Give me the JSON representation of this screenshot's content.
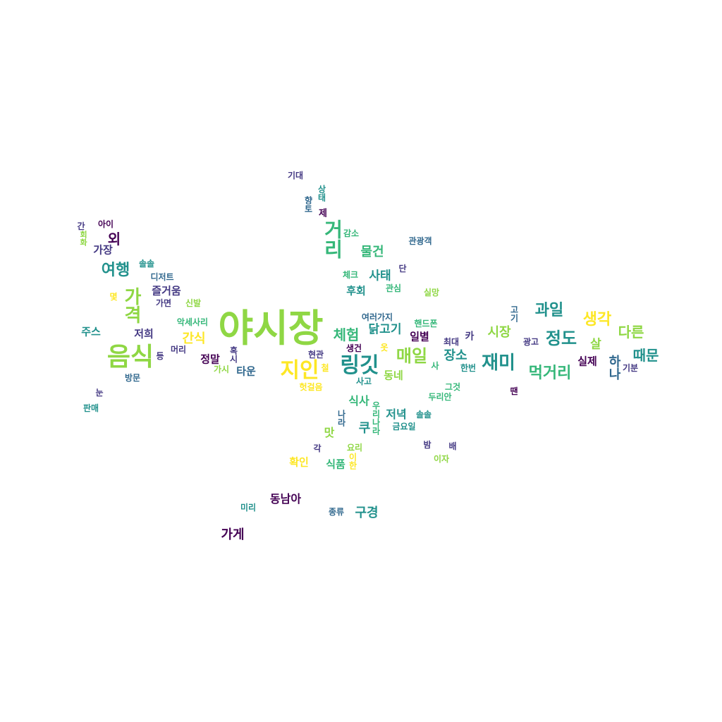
{
  "palette": {
    "yellow": "#fde725",
    "lime": "#8fd744",
    "green": "#35b779",
    "teal": "#21918c",
    "blue": "#31688e",
    "indigo": "#443983",
    "purple": "#440154"
  },
  "words": [
    {
      "text": "야시장",
      "color": "#8fd744"
    },
    {
      "text": "음식",
      "color": "#8fd744"
    },
    {
      "text": "지인",
      "color": "#fde725"
    },
    {
      "text": "링깃",
      "color": "#21918c"
    },
    {
      "text": "거리",
      "color": "#35b779"
    },
    {
      "text": "가격",
      "color": "#8fd744"
    },
    {
      "text": "재미",
      "color": "#21918c"
    },
    {
      "text": "여행",
      "color": "#21918c"
    },
    {
      "text": "매일",
      "color": "#8fd744"
    },
    {
      "text": "정도",
      "color": "#21918c"
    },
    {
      "text": "과일",
      "color": "#21918c"
    },
    {
      "text": "생각",
      "color": "#fde725"
    },
    {
      "text": "먹거리",
      "color": "#35b779"
    },
    {
      "text": "체험",
      "color": "#35b779"
    },
    {
      "text": "외",
      "color": "#440154"
    },
    {
      "text": "다른",
      "color": "#8fd744"
    },
    {
      "text": "때문",
      "color": "#21918c"
    },
    {
      "text": "시장",
      "color": "#8fd744"
    },
    {
      "text": "장소",
      "color": "#21918c"
    },
    {
      "text": "간식",
      "color": "#fde725"
    },
    {
      "text": "닭고기",
      "color": "#21918c"
    },
    {
      "text": "물건",
      "color": "#35b779"
    },
    {
      "text": "사태",
      "color": "#21918c"
    },
    {
      "text": "가게",
      "color": "#440154"
    },
    {
      "text": "구경",
      "color": "#21918c"
    },
    {
      "text": "동남아",
      "color": "#440154"
    },
    {
      "text": "식사",
      "color": "#35b779"
    },
    {
      "text": "저녁",
      "color": "#21918c"
    },
    {
      "text": "쿠",
      "color": "#21918c"
    },
    {
      "text": "맛",
      "color": "#8fd744"
    },
    {
      "text": "확인",
      "color": "#fde725"
    },
    {
      "text": "식품",
      "color": "#35b779"
    },
    {
      "text": "후회",
      "color": "#21918c"
    },
    {
      "text": "살",
      "color": "#8fd744"
    },
    {
      "text": "실제",
      "color": "#440154"
    },
    {
      "text": "일별",
      "color": "#440154"
    },
    {
      "text": "즐거움",
      "color": "#443983"
    },
    {
      "text": "주스",
      "color": "#21918c"
    },
    {
      "text": "저희",
      "color": "#443983"
    },
    {
      "text": "정말",
      "color": "#440154"
    },
    {
      "text": "타운",
      "color": "#31688e"
    },
    {
      "text": "동네",
      "color": "#8fd744"
    },
    {
      "text": "가장",
      "color": "#443983"
    },
    {
      "text": "기대",
      "color": "#443983"
    },
    {
      "text": "상태",
      "color": "#21918c"
    },
    {
      "text": "향토",
      "color": "#31688e"
    },
    {
      "text": "제",
      "color": "#440154"
    },
    {
      "text": "감소",
      "color": "#35b779"
    },
    {
      "text": "관광객",
      "color": "#31688e"
    },
    {
      "text": "간",
      "color": "#443983"
    },
    {
      "text": "아이",
      "color": "#440154"
    },
    {
      "text": "회화",
      "color": "#8fd744"
    },
    {
      "text": "솔솔",
      "color": "#21918c"
    },
    {
      "text": "디저트",
      "color": "#31688e"
    },
    {
      "text": "체크",
      "color": "#35b779"
    },
    {
      "text": "단",
      "color": "#443983"
    },
    {
      "text": "관심",
      "color": "#35b779"
    },
    {
      "text": "실망",
      "color": "#8fd744"
    },
    {
      "text": "몇",
      "color": "#fde725"
    },
    {
      "text": "가면",
      "color": "#443983"
    },
    {
      "text": "신발",
      "color": "#8fd744"
    },
    {
      "text": "여러가지",
      "color": "#31688e"
    },
    {
      "text": "핸드폰",
      "color": "#35b779"
    },
    {
      "text": "고기",
      "color": "#31688e"
    },
    {
      "text": "악세사리",
      "color": "#35b779"
    },
    {
      "text": "머리",
      "color": "#443983"
    },
    {
      "text": "등",
      "color": "#443983"
    },
    {
      "text": "현관",
      "color": "#443983"
    },
    {
      "text": "생건",
      "color": "#440154"
    },
    {
      "text": "옷",
      "color": "#fde725"
    },
    {
      "text": "최대",
      "color": "#443983"
    },
    {
      "text": "광고",
      "color": "#443983"
    },
    {
      "text": "기분",
      "color": "#443983"
    },
    {
      "text": "가시",
      "color": "#8fd744"
    },
    {
      "text": "혹시",
      "color": "#443983"
    },
    {
      "text": "철",
      "color": "#fde725"
    },
    {
      "text": "사고",
      "color": "#21918c"
    },
    {
      "text": "사",
      "color": "#35b779"
    },
    {
      "text": "한번",
      "color": "#21918c"
    },
    {
      "text": "방문",
      "color": "#31688e"
    },
    {
      "text": "눈",
      "color": "#443983"
    },
    {
      "text": "판매",
      "color": "#21918c"
    },
    {
      "text": "헛걸음",
      "color": "#fde725"
    },
    {
      "text": "그것",
      "color": "#35b779"
    },
    {
      "text": "두리안",
      "color": "#35b779"
    },
    {
      "text": "땐",
      "color": "#440154"
    },
    {
      "text": "솔솔",
      "color": "#21918c"
    },
    {
      "text": "금요일",
      "color": "#21918c"
    },
    {
      "text": "우리나라",
      "color": "#35b779"
    },
    {
      "text": "나라",
      "color": "#31688e"
    },
    {
      "text": "밤",
      "color": "#443983"
    },
    {
      "text": "배",
      "color": "#443983"
    },
    {
      "text": "이자",
      "color": "#8fd744"
    },
    {
      "text": "각",
      "color": "#443983"
    },
    {
      "text": "요리",
      "color": "#8fd744"
    },
    {
      "text": "이한",
      "color": "#fde725"
    },
    {
      "text": "미리",
      "color": "#21918c"
    },
    {
      "text": "종류",
      "color": "#31688e"
    },
    {
      "text": "하나",
      "color": "#31688e"
    },
    {
      "text": "카",
      "color": "#443983"
    }
  ]
}
